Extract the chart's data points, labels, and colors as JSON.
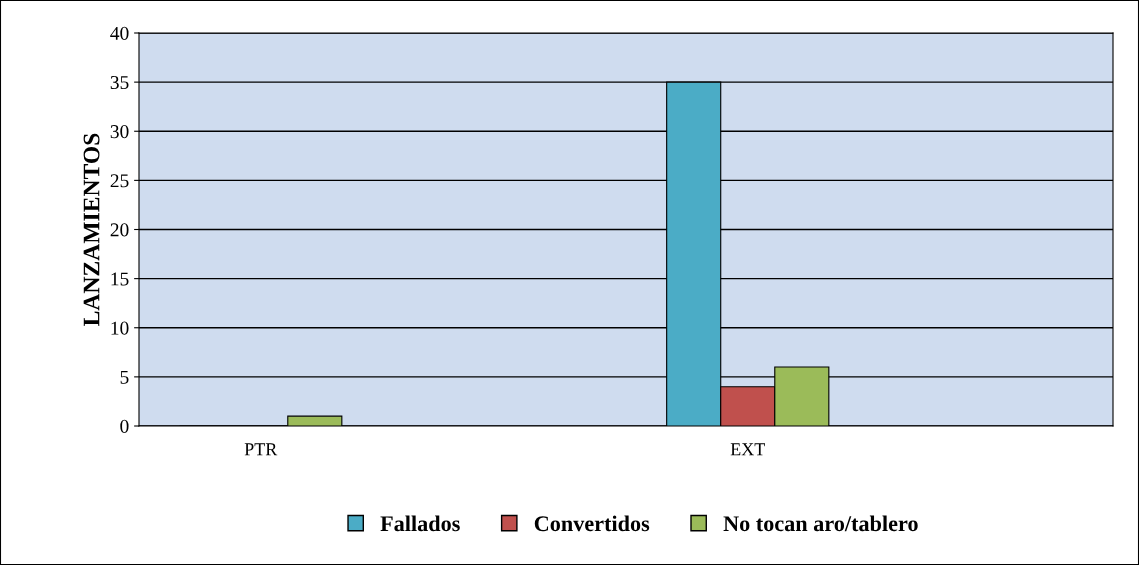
{
  "chart_data": {
    "type": "bar",
    "ylabel": "LANZAMIENTOS",
    "categories": [
      "PTR",
      "EXT"
    ],
    "series": [
      {
        "name": "Fallados",
        "color": "#4bacc6",
        "values": [
          0,
          35
        ]
      },
      {
        "name": "Convertidos",
        "color": "#c0504d",
        "values": [
          0,
          4
        ]
      },
      {
        "name": "No tocan aro/tablero",
        "color": "#9bbb59",
        "values": [
          1,
          6
        ]
      }
    ],
    "ylim": [
      0,
      40
    ],
    "yticks": [
      0,
      5,
      10,
      15,
      20,
      25,
      30,
      35,
      40
    ],
    "grid": "y",
    "legend": "bottom"
  }
}
